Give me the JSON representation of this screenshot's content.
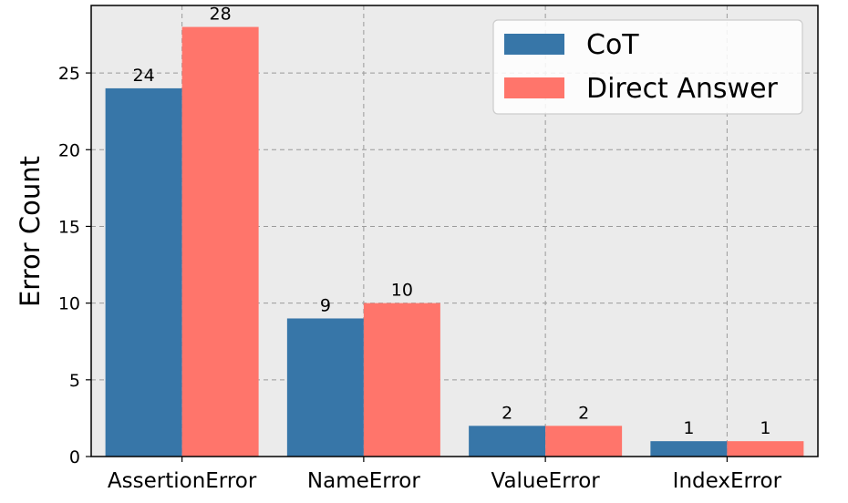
{
  "chart_data": {
    "type": "bar",
    "categories": [
      "AssertionError",
      "NameError",
      "ValueError",
      "IndexError"
    ],
    "series": [
      {
        "name": "CoT",
        "values": [
          24,
          9,
          2,
          1
        ],
        "color": "#3776a8"
      },
      {
        "name": "Direct Answer",
        "values": [
          28,
          10,
          2,
          1
        ],
        "color": "#ff756b"
      }
    ],
    "title": "",
    "xlabel": "",
    "ylabel": "Error Count",
    "ylim": [
      0,
      29.4
    ],
    "yticks": [
      0,
      5,
      10,
      15,
      20,
      25
    ],
    "grid": true,
    "legend_position": "top-right",
    "plot_background": "#ebebeb"
  }
}
